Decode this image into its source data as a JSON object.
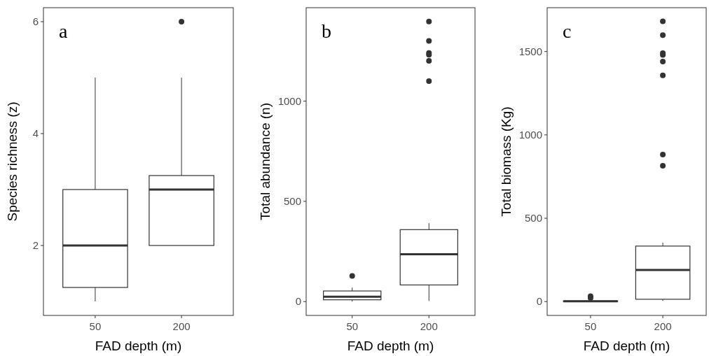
{
  "chart_data": [
    {
      "type": "box",
      "categories": [
        "50",
        "200"
      ],
      "xlabel": "FAD depth (m)",
      "ylabel": "Species richness (z)",
      "ylim": [
        0.75,
        6.25
      ],
      "yticks": [
        2,
        4,
        6
      ],
      "annotations": [
        "a"
      ],
      "boxes": [
        {
          "low": 1,
          "q1": 1.25,
          "median": 2,
          "q3": 3,
          "high": 5
        },
        {
          "low": 2,
          "q1": 2,
          "median": 3,
          "q3": 3.25,
          "high": 5,
          "outliers": [
            6
          ]
        }
      ]
    },
    {
      "type": "box",
      "categories": [
        "50",
        "200"
      ],
      "xlabel": "FAD depth (m)",
      "ylabel": "Total abundance (n)",
      "ylim": [
        -69,
        1466
      ],
      "yticks": [
        0,
        500,
        1000
      ],
      "annotations": [
        "b"
      ],
      "boxes": [
        {
          "low": 1,
          "q1": 9,
          "median": 24,
          "q3": 53,
          "high": 70,
          "outliers": [
            128
          ]
        },
        {
          "low": 3,
          "q1": 83,
          "median": 236,
          "q3": 359,
          "high": 391,
          "outliers": [
            1397,
            1300,
            1240,
            1231,
            1201,
            1100
          ]
        }
      ]
    },
    {
      "type": "box",
      "categories": [
        "50",
        "200"
      ],
      "xlabel": "FAD depth (m)",
      "ylabel": "Total biomass (Kg)",
      "ylim": [
        -83,
        1763
      ],
      "yticks": [
        0,
        500,
        1000,
        1500
      ],
      "annotations": [
        "c"
      ],
      "boxes": [
        {
          "low": 0,
          "q1": 0,
          "median": 2,
          "q3": 4,
          "high": 8,
          "outliers": [
            32,
            22
          ]
        },
        {
          "low": 4,
          "q1": 14,
          "median": 190,
          "q3": 333,
          "high": 354,
          "outliers": [
            1681,
            1598,
            1490,
            1480,
            1440,
            1357,
            882,
            815
          ]
        }
      ]
    }
  ]
}
